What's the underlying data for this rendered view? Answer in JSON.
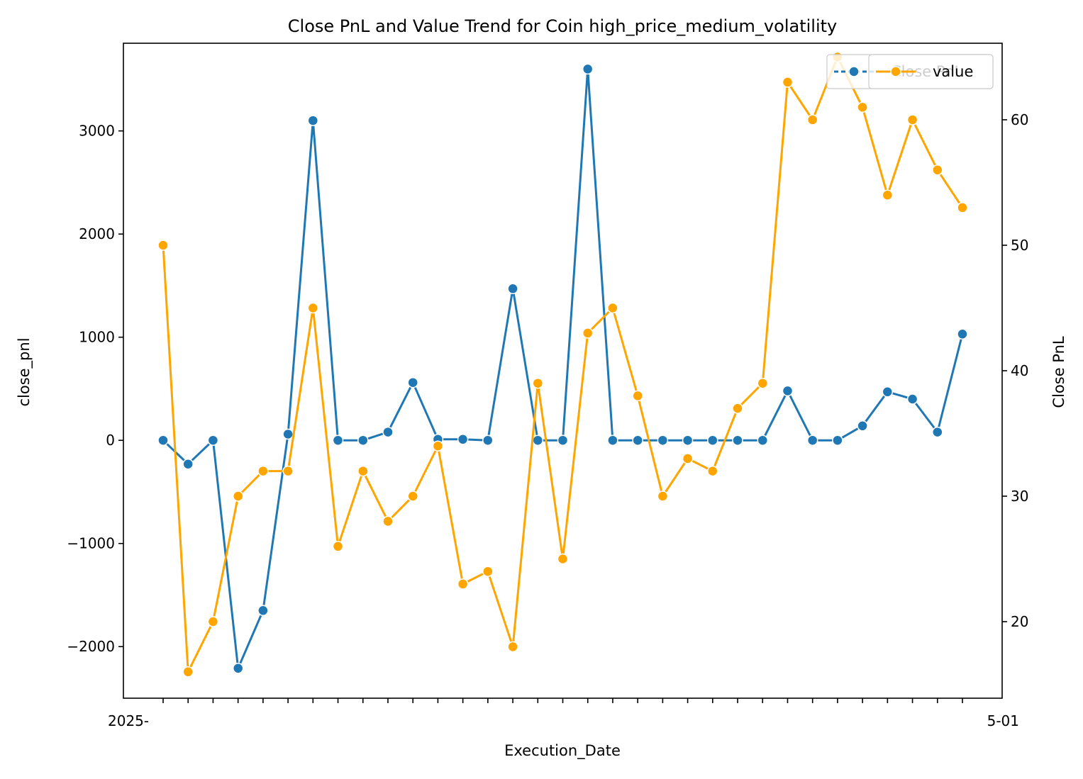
{
  "chart_data": {
    "type": "line",
    "title": "Close PnL and Value Trend for Coin high_price_medium_volatility",
    "xlabel": "Execution_Date",
    "ylabel_left": "close_pnl",
    "ylabel_right": "Close PnL",
    "n_points": 33,
    "x_tick_labels_note": "33 overlapping date tick labels, only first '2025-' and last '-001' fragments legible",
    "x_tick_first": "2025-",
    "x_tick_last": "5-01",
    "x": [
      "2025-",
      "",
      "",
      "",
      "",
      "",
      "",
      "",
      "",
      "",
      "",
      "",
      "",
      "",
      "",
      "",
      "",
      "",
      "",
      "",
      "",
      "",
      "",
      "",
      "",
      "",
      "",
      "",
      "",
      "",
      "",
      "",
      "5-01"
    ],
    "ylim_left": [
      -2500,
      3850
    ],
    "ylim_right": [
      13.9,
      66.1
    ],
    "yticks_left": [
      -2000,
      -1000,
      0,
      1000,
      2000,
      3000
    ],
    "yticks_right": [
      20,
      30,
      40,
      50,
      60
    ],
    "grid": false,
    "legend_placement": "top-right",
    "series": [
      {
        "name": "Close PnL",
        "axis": "left",
        "color": "#1f77b4",
        "marker": "circle",
        "values": [
          0,
          -230,
          0,
          -2210,
          -1650,
          60,
          3100,
          0,
          0,
          80,
          560,
          10,
          10,
          0,
          1470,
          0,
          0,
          3600,
          0,
          0,
          0,
          0,
          0,
          0,
          0,
          480,
          0,
          0,
          140,
          470,
          400,
          80,
          1030
        ]
      },
      {
        "name": "value",
        "axis": "right",
        "color": "#ffa500",
        "marker": "circle",
        "values": [
          50,
          16,
          20,
          30,
          32,
          32,
          45,
          26,
          32,
          28,
          30,
          34,
          23,
          24,
          18,
          39,
          25,
          43,
          45,
          38,
          30,
          33,
          32,
          37,
          39,
          63,
          60,
          65,
          61,
          54,
          60,
          56,
          53
        ]
      }
    ]
  }
}
